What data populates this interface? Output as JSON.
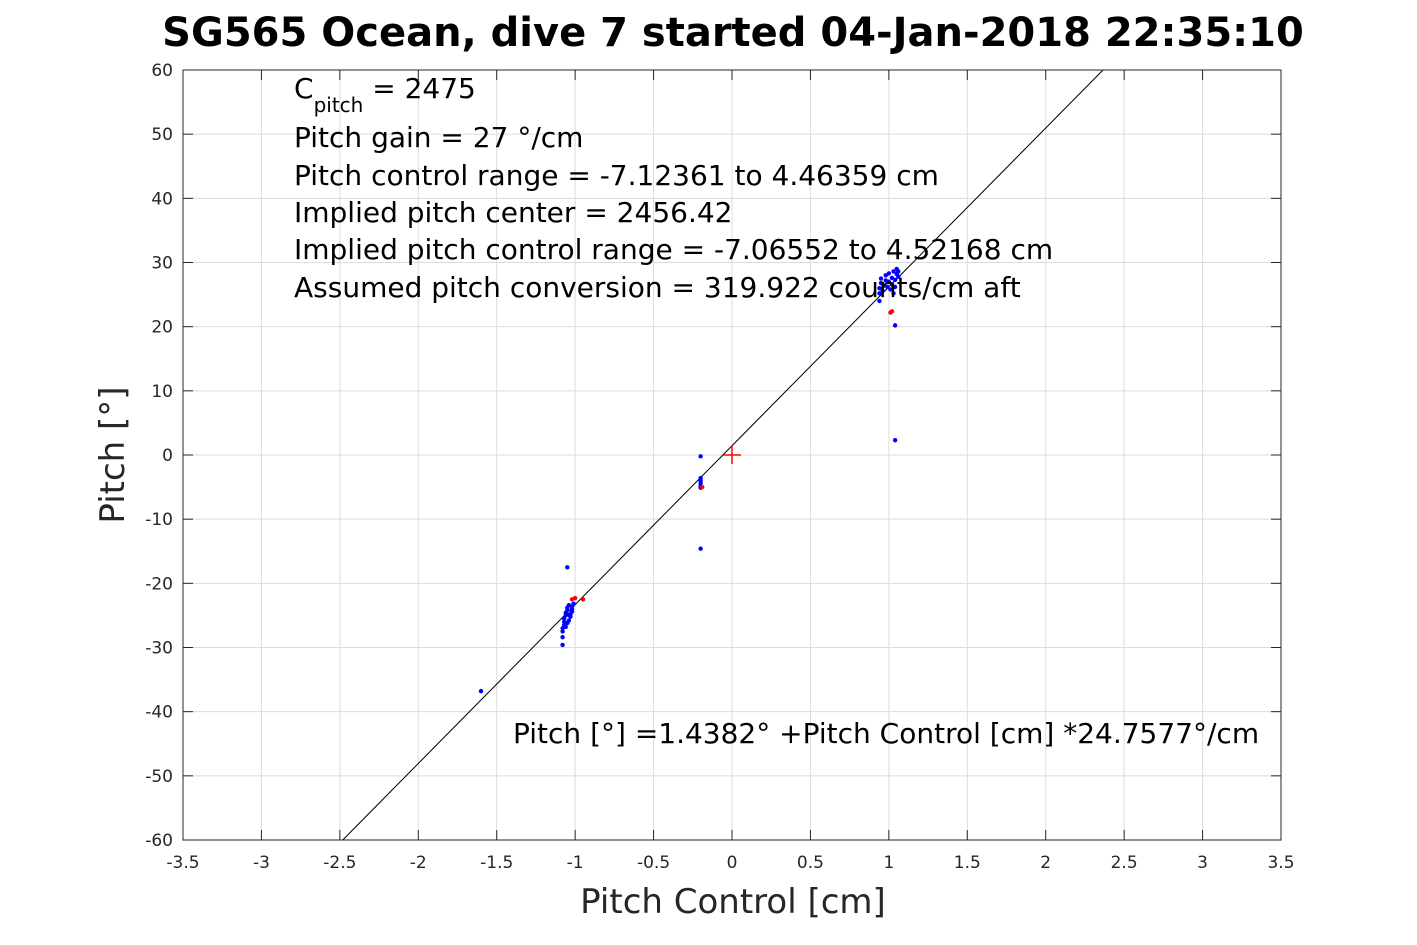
{
  "chart_data": {
    "type": "scatter",
    "title": "SG565 Ocean, dive 7 started 04-Jan-2018 22:35:10",
    "xlabel": "Pitch Control [cm]",
    "ylabel": "Pitch [°]",
    "xlim": [
      -3.5,
      3.5
    ],
    "ylim": [
      -60,
      60
    ],
    "grid": true,
    "xticks": [
      "-3.5",
      "-3",
      "-2.5",
      "-2",
      "-1.5",
      "-1",
      "-0.5",
      "0",
      "0.5",
      "1",
      "1.5",
      "2",
      "2.5",
      "3",
      "3.5"
    ],
    "yticks": [
      "60",
      "50",
      "40",
      "30",
      "20",
      "10",
      "0",
      "-10",
      "-20",
      "-30",
      "-40",
      "-50",
      "-60"
    ],
    "annotations": {
      "c_pitch_main": "C",
      "c_pitch_sub": "pitch",
      "c_pitch_value": " = 2475",
      "gain": "Pitch gain = 27 °/cm",
      "range": "Pitch control range = -7.12361 to 4.46359 cm",
      "center": "Implied pitch center = 2456.42",
      "implied_range": "Implied pitch control range = -7.06552 to 4.52168 cm",
      "conversion": "Assumed pitch conversion = 319.922 counts/cm aft",
      "fit": "Pitch [°] =1.4382° +Pitch Control [cm] *24.7577°/cm"
    },
    "fit_line": {
      "intercept": 1.4382,
      "slope": 24.7577,
      "color": "#000000"
    },
    "center_marker": {
      "x": 0,
      "y": 0,
      "color": "#ff0000"
    },
    "series": [
      {
        "color": "#0000ff",
        "points": [
          [
            -1.6,
            -36.8
          ],
          [
            -1.05,
            -17.5
          ],
          [
            -1.08,
            -29.6
          ],
          [
            -1.08,
            -28.4
          ],
          [
            -1.08,
            -27.5
          ],
          [
            -1.08,
            -27.0
          ],
          [
            -1.07,
            -26.5
          ],
          [
            -1.07,
            -26.0
          ],
          [
            -1.07,
            -25.5
          ],
          [
            -1.06,
            -25.0
          ],
          [
            -1.06,
            -24.6
          ],
          [
            -1.05,
            -24.2
          ],
          [
            -1.05,
            -23.8
          ],
          [
            -1.04,
            -23.4
          ],
          [
            -1.04,
            -25.8
          ],
          [
            -1.03,
            -25.2
          ],
          [
            -1.03,
            -24.8
          ],
          [
            -1.02,
            -24.4
          ],
          [
            -1.02,
            -24.0
          ],
          [
            -1.02,
            -23.6
          ],
          [
            -1.01,
            -23.2
          ],
          [
            -1.06,
            -26.8
          ],
          [
            -1.05,
            -26.2
          ],
          [
            -1.04,
            -24.9
          ],
          [
            -0.2,
            -0.2
          ],
          [
            -0.2,
            -3.6
          ],
          [
            -0.2,
            -4.0
          ],
          [
            -0.2,
            -4.4
          ],
          [
            -0.2,
            -4.8
          ],
          [
            -0.2,
            -5.1
          ],
          [
            -0.2,
            -14.6
          ],
          [
            0.94,
            24.0
          ],
          [
            0.94,
            25.2
          ],
          [
            0.94,
            26.0
          ],
          [
            0.95,
            26.8
          ],
          [
            0.95,
            27.5
          ],
          [
            0.96,
            25.6
          ],
          [
            0.97,
            26.4
          ],
          [
            0.98,
            27.2
          ],
          [
            0.98,
            28.0
          ],
          [
            0.99,
            26.2
          ],
          [
            1.0,
            27.0
          ],
          [
            1.0,
            28.3
          ],
          [
            1.01,
            25.8
          ],
          [
            1.02,
            26.6
          ],
          [
            1.02,
            27.6
          ],
          [
            1.03,
            28.6
          ],
          [
            1.03,
            25.2
          ],
          [
            1.04,
            26.2
          ],
          [
            1.04,
            27.3
          ],
          [
            1.05,
            28.2
          ],
          [
            1.05,
            29.0
          ],
          [
            1.06,
            27.8
          ],
          [
            1.06,
            28.6
          ],
          [
            1.04,
            20.2
          ],
          [
            1.04,
            2.3
          ]
        ]
      },
      {
        "color": "#ff0000",
        "points": [
          [
            -1.02,
            -22.5
          ],
          [
            -1.0,
            -22.3
          ],
          [
            -0.95,
            -22.5
          ],
          [
            -0.19,
            -5.0
          ],
          [
            1.01,
            22.2
          ],
          [
            1.02,
            22.4
          ]
        ]
      }
    ]
  }
}
